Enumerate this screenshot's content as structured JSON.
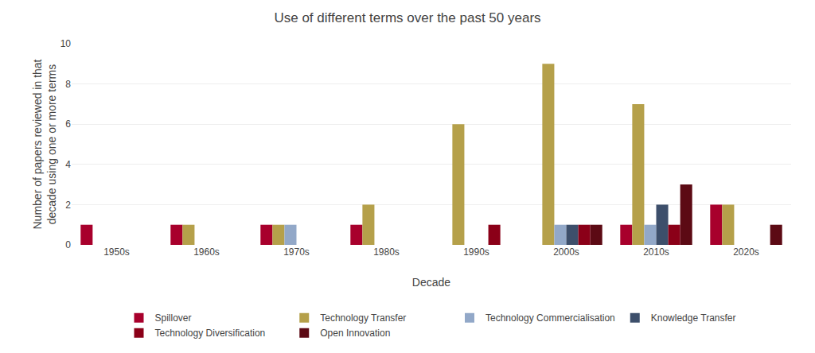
{
  "chart_data": {
    "type": "bar",
    "title": "Use of different terms over the past 50 years",
    "xlabel": "Decade",
    "ylabel": "Number of papers reviewed in that\ndecade using one or more terms",
    "categories": [
      "1950s",
      "1960s",
      "1970s",
      "1980s",
      "1990s",
      "2000s",
      "2010s",
      "2020s"
    ],
    "series": [
      {
        "name": "Spillover",
        "color": "#A8002C",
        "values": [
          1,
          1,
          1,
          1,
          0,
          0,
          1,
          2
        ]
      },
      {
        "name": "Technology Transfer",
        "color": "#B5A04A",
        "values": [
          0,
          1,
          1,
          2,
          6,
          9,
          7,
          2
        ]
      },
      {
        "name": "Technology Commercialisation",
        "color": "#92A8C8",
        "values": [
          0,
          0,
          1,
          0,
          0,
          1,
          1,
          0
        ]
      },
      {
        "name": "Knowledge Transfer",
        "color": "#3D4F6B",
        "values": [
          0,
          0,
          0,
          0,
          0,
          1,
          2,
          0
        ]
      },
      {
        "name": "Technology Diversification",
        "color": "#8B0018",
        "values": [
          0,
          0,
          0,
          0,
          1,
          1,
          1,
          0
        ]
      },
      {
        "name": "Open Innovation",
        "color": "#5C0A14",
        "values": [
          0,
          0,
          0,
          0,
          0,
          1,
          3,
          1
        ]
      }
    ],
    "ylim": [
      0,
      10
    ],
    "yticks": [
      0,
      2,
      4,
      6,
      8,
      10
    ],
    "grid": true,
    "legend": "bottom"
  }
}
